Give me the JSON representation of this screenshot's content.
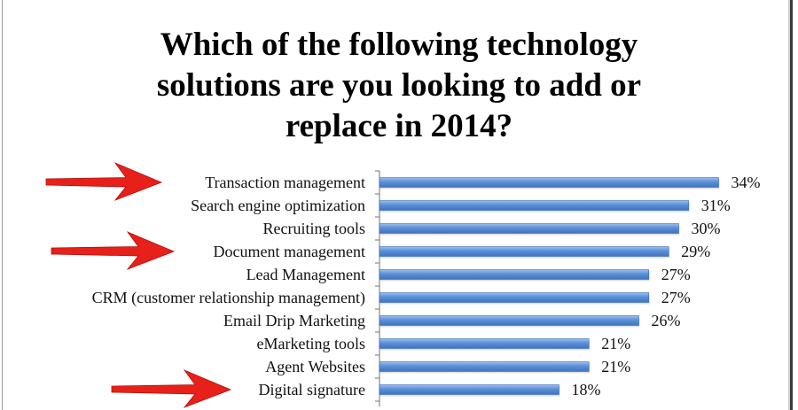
{
  "chart_data": {
    "type": "bar",
    "orientation": "horizontal",
    "title_lines": [
      "Which of the following technology",
      "solutions are you looking to add or",
      "replace in 2014?"
    ],
    "categories": [
      "Transaction management",
      "Search engine optimization",
      "Recruiting tools",
      "Document management",
      "Lead Management",
      "CRM (customer relationship management)",
      "Email Drip Marketing",
      "eMarketing tools",
      "Agent Websites",
      "Digital signature"
    ],
    "values": [
      34,
      31,
      30,
      29,
      27,
      27,
      26,
      21,
      21,
      18
    ],
    "value_labels": [
      "34%",
      "31%",
      "30%",
      "29%",
      "27%",
      "27%",
      "26%",
      "21%",
      "21%",
      "18%"
    ],
    "unit": "%",
    "xlim": [
      0,
      40
    ],
    "grid": false,
    "bar_color": "#5b8fd6",
    "annotations": [
      {
        "type": "arrow",
        "color": "#e8201a",
        "points_to": "Transaction management"
      },
      {
        "type": "arrow",
        "color": "#e8201a",
        "points_to": "Document management"
      },
      {
        "type": "arrow",
        "color": "#e8201a",
        "points_to": "Digital signature"
      }
    ]
  }
}
